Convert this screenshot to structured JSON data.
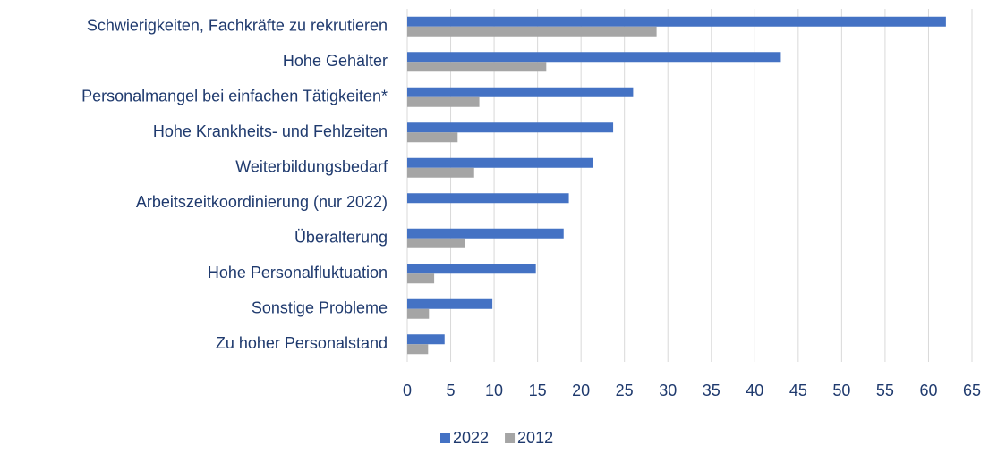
{
  "chart_data": {
    "type": "barh",
    "categories": [
      "Schwierigkeiten, Fachkräfte zu rekrutieren",
      "Hohe Gehälter",
      "Personalmangel bei einfachen Tätigkeiten*",
      "Hohe Krankheits- und Fehlzeiten",
      "Weiterbildungsbedarf",
      "Arbeitszeitkoordinierung (nur 2022)",
      "Überalterung",
      "Hohe Personalfluktuation",
      "Sonstige Probleme",
      "Zu hoher Personalstand"
    ],
    "series": [
      {
        "name": "2022",
        "color": "#4472c4",
        "values": [
          62,
          43,
          26,
          23.7,
          21.4,
          18.6,
          18,
          14.8,
          9.8,
          4.3
        ]
      },
      {
        "name": "2012",
        "color": "#a5a5a5",
        "values": [
          28.7,
          16,
          8.3,
          5.8,
          7.7,
          null,
          6.6,
          3.1,
          2.5,
          2.4
        ]
      }
    ],
    "xlim": [
      0,
      65
    ],
    "xticks": [
      0,
      5,
      10,
      15,
      20,
      25,
      30,
      35,
      40,
      45,
      50,
      55,
      60,
      65
    ],
    "grid": true,
    "legend": "bottom"
  }
}
